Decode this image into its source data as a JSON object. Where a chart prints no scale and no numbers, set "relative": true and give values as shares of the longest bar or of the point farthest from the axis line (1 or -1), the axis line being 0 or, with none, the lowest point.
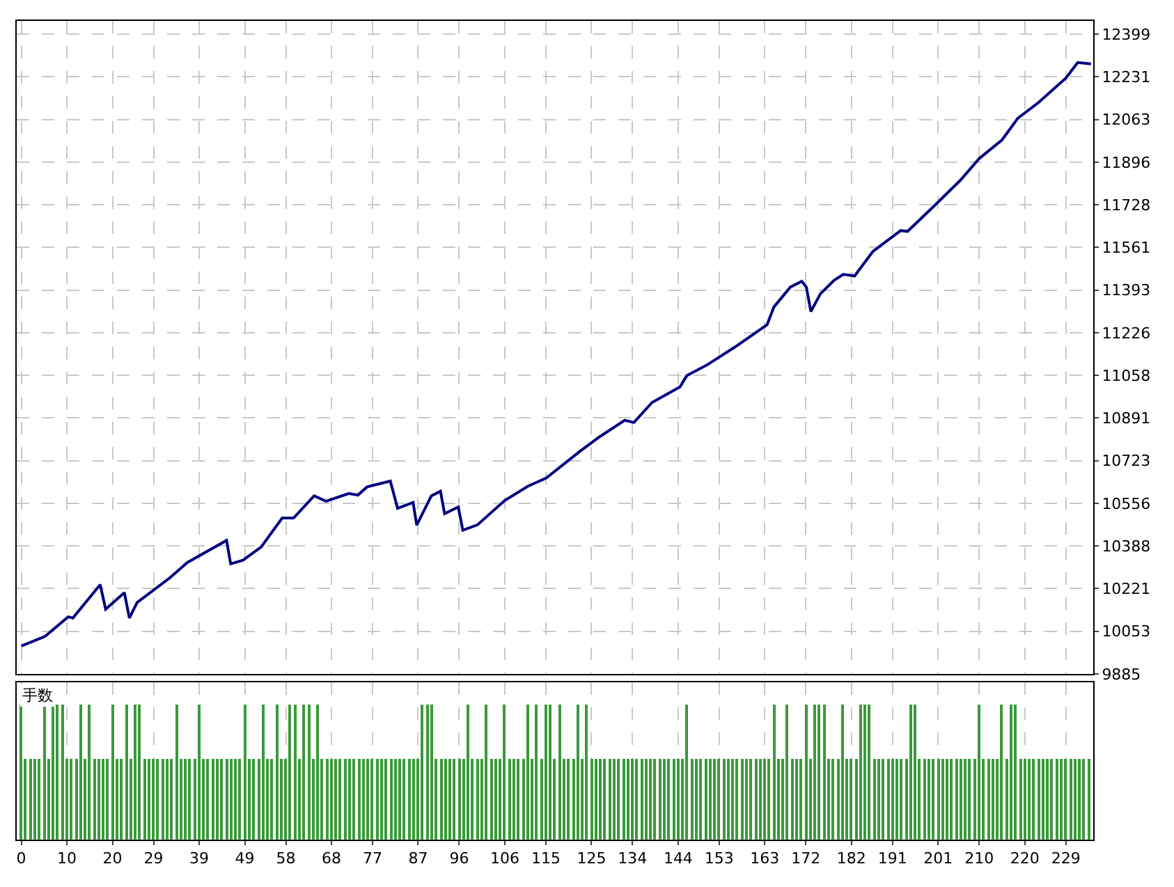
{
  "chart_data": [
    {
      "type": "line",
      "xlim": [
        -1,
        235
      ],
      "ylim": [
        9885,
        12450
      ],
      "xticks": [
        0,
        10,
        20,
        29,
        39,
        49,
        58,
        68,
        77,
        87,
        96,
        106,
        115,
        125,
        134,
        144,
        153,
        163,
        172,
        182,
        191,
        201,
        210,
        220,
        229
      ],
      "yticks": [
        9885,
        10053,
        10221,
        10388,
        10556,
        10723,
        10891,
        11058,
        11226,
        11393,
        11561,
        11728,
        11896,
        12063,
        12231,
        12399
      ],
      "tick_labels": "y",
      "grid": true,
      "series": [
        {
          "color": "#000080",
          "x": [
            0,
            5.2,
            10.3,
            11.3,
            17.3,
            18.5,
            22.6,
            23.7,
            25.4,
            32.5,
            36.4,
            45,
            45.9,
            48.6,
            52.6,
            57.2,
            59.7,
            64.2,
            66.8,
            71.8,
            73.8,
            75.8,
            80.9,
            82.5,
            85.9,
            86.7,
            89.9,
            91.9,
            92.8,
            95.8,
            96.8,
            100,
            106,
            111.1,
            115.1,
            122.2,
            126.7,
            132.3,
            134.3,
            138.3,
            144.4,
            145.9,
            150.4,
            156.5,
            163.5,
            165,
            168.6,
            171.1,
            172.1,
            173.1,
            175.2,
            178.2,
            180.2,
            182.7,
            186.7,
            192.8,
            194.3,
            199.9,
            205.9,
            210,
            215,
            218.5,
            223,
            229,
            231.6,
            234.5
          ],
          "values": [
            9995,
            10033,
            10110,
            10105,
            10236,
            10140,
            10205,
            10105,
            10166,
            10262,
            10323,
            10410,
            10318,
            10332,
            10384,
            10498,
            10498,
            10585,
            10564,
            10594,
            10588,
            10620,
            10643,
            10536,
            10559,
            10470,
            10585,
            10603,
            10515,
            10541,
            10450,
            10471,
            10567,
            10623,
            10655,
            10756,
            10816,
            10882,
            10873,
            10952,
            11013,
            11057,
            11100,
            11170,
            11257,
            11327,
            11405,
            11428,
            11405,
            11309,
            11379,
            11432,
            11455,
            11449,
            11545,
            11627,
            11624,
            11720,
            11825,
            11910,
            11983,
            12069,
            12130,
            12226,
            12287,
            12282
          ]
        }
      ]
    },
    {
      "type": "bar",
      "title": "手数",
      "relative": true,
      "xlim": [
        -1,
        235
      ],
      "tick_labels": "x",
      "grid": "x",
      "xticks": [
        0,
        10,
        20,
        29,
        39,
        49,
        58,
        68,
        77,
        87,
        96,
        106,
        115,
        125,
        134,
        144,
        153,
        163,
        172,
        182,
        191,
        201,
        210,
        220,
        229
      ],
      "x": [
        0,
        1,
        2,
        3,
        4,
        5,
        6,
        7,
        8,
        9,
        10,
        11,
        12,
        13,
        14,
        15,
        16,
        17,
        18,
        19,
        20,
        21,
        22,
        23,
        24,
        25,
        26,
        27,
        28,
        29,
        30,
        31,
        32,
        33,
        34,
        35,
        36,
        37,
        38,
        39,
        40,
        41,
        42,
        43,
        44,
        45,
        46,
        47,
        48,
        49,
        50,
        51,
        52,
        53,
        54,
        55,
        56,
        57,
        58,
        59,
        60,
        61,
        62,
        63,
        64,
        65,
        66,
        67,
        68,
        69,
        70,
        71,
        72,
        73,
        74,
        75,
        76,
        77,
        78,
        79,
        80,
        81,
        82,
        83,
        84,
        85,
        86,
        87,
        88,
        89,
        90,
        91,
        92,
        93,
        94,
        95,
        96,
        97,
        98,
        99,
        100,
        101,
        102,
        103,
        104,
        105,
        106,
        107,
        108,
        109,
        110,
        111,
        112,
        113,
        114,
        115,
        116,
        117,
        118,
        119,
        120,
        121,
        122,
        123,
        124,
        125,
        126,
        127,
        128,
        129,
        130,
        131,
        132,
        133,
        134,
        135,
        136,
        137,
        138,
        139,
        140,
        141,
        142,
        143,
        144,
        145,
        146,
        147,
        148,
        149,
        150,
        151,
        152,
        153,
        154,
        155,
        156,
        157,
        158,
        159,
        160,
        161,
        162,
        163,
        164,
        165,
        166,
        167,
        168,
        169,
        170,
        171,
        172,
        173,
        174,
        175,
        176,
        177,
        178,
        179,
        180,
        181,
        182,
        183,
        184,
        185,
        186,
        187,
        188,
        189,
        190,
        191,
        192,
        193,
        194,
        195,
        196,
        197,
        198,
        199,
        200,
        201,
        202,
        203,
        204,
        205,
        206,
        207,
        208,
        209,
        210,
        211,
        212,
        213,
        214,
        215,
        216,
        217,
        218,
        219,
        220,
        221,
        222,
        223,
        224,
        225,
        226,
        227,
        228,
        229,
        230,
        231,
        232,
        233,
        234
      ],
      "series": [
        {
          "color": "#3a9a3a",
          "values": [
            1,
            0.59,
            0.59,
            0.59,
            0.59,
            1,
            0.59,
            1,
            1,
            1,
            0.59,
            0.59,
            0.59,
            1,
            0.59,
            1,
            0.59,
            0.59,
            0.59,
            0.59,
            1,
            0.59,
            0.59,
            1,
            0.59,
            1,
            1,
            0.59,
            0.59,
            0.59,
            0.59,
            0.59,
            0.59,
            0.59,
            1,
            0.59,
            0.59,
            0.59,
            0.59,
            1,
            0.59,
            0.59,
            0.59,
            0.59,
            0.59,
            0.59,
            0.59,
            0.59,
            0.59,
            1,
            0.59,
            0.59,
            0.59,
            1,
            0.59,
            0.59,
            1,
            0.59,
            0.59,
            1,
            1,
            0.59,
            1,
            1,
            0.59,
            1,
            0.59,
            0.59,
            0.59,
            0.59,
            0.59,
            0.59,
            0.59,
            0.59,
            0.59,
            0.59,
            0.59,
            0.59,
            0.59,
            0.59,
            0.59,
            0.59,
            0.59,
            0.59,
            0.59,
            0.59,
            0.59,
            0.59,
            1,
            1,
            1,
            0.59,
            0.59,
            0.59,
            0.59,
            0.59,
            0.59,
            0.59,
            1,
            0.59,
            0.59,
            0.59,
            1,
            0.59,
            0.59,
            0.59,
            1,
            0.59,
            0.59,
            0.59,
            0.59,
            1,
            0.59,
            1,
            0.59,
            1,
            1,
            0.59,
            1,
            0.59,
            0.59,
            0.59,
            1,
            0.59,
            1,
            0.59,
            0.59,
            0.59,
            0.59,
            0.59,
            0.59,
            0.59,
            0.59,
            0.59,
            0.59,
            0.59,
            0.59,
            0.59,
            0.59,
            0.59,
            0.59,
            0.59,
            0.59,
            0.59,
            0.59,
            0.59,
            1,
            0.59,
            0.59,
            0.59,
            0.59,
            0.59,
            0.59,
            0.59,
            0.59,
            0.59,
            0.59,
            0.59,
            0.59,
            0.59,
            0.59,
            0.59,
            0.59,
            0.59,
            0.59,
            1,
            0.59,
            0.59,
            1,
            0.59,
            0.59,
            0.59,
            1,
            0.59,
            1,
            1,
            1,
            0.59,
            0.59,
            0.59,
            1,
            0.59,
            0.59,
            0.59,
            1,
            1,
            1,
            0.59,
            0.59,
            0.59,
            0.59,
            0.59,
            0.59,
            0.59,
            0.59,
            1,
            1,
            0.59,
            0.59,
            0.59,
            0.59,
            0.59,
            0.59,
            0.59,
            0.59,
            0.59,
            0.59,
            0.59,
            0.59,
            0.59,
            1,
            0.59,
            0.59,
            0.59,
            0.59,
            1,
            0.59,
            1,
            1,
            0.59,
            0.59,
            0.59,
            0.59,
            0.59,
            0.59,
            0.59,
            0.59,
            0.59,
            0.59,
            0.59,
            0.59,
            0.59,
            0.59,
            0.59,
            0.59
          ]
        }
      ]
    }
  ]
}
